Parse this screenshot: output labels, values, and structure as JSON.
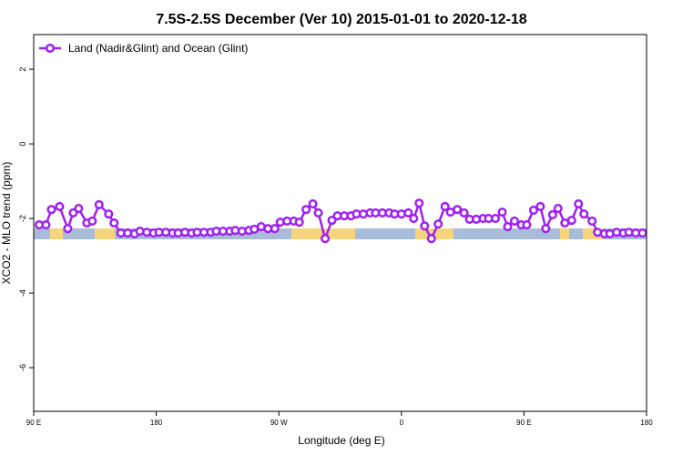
{
  "chart_data": {
    "type": "line",
    "title": "7.5S-2.5S December (Ver 10)   2015-01-01 to 2020-12-18",
    "x_label": "Longitude (deg E)",
    "y_label": "XCO2 - MLO trend (ppm)",
    "xlim": [
      90,
      540
    ],
    "ylim": [
      2.93,
      -7.17
    ],
    "xticks": [
      {
        "value": 90,
        "label": "90 E"
      },
      {
        "value": 180,
        "label": "180"
      },
      {
        "value": 270,
        "label": "90 W"
      },
      {
        "value": 360,
        "label": "0"
      },
      {
        "value": 450,
        "label": "90 E"
      },
      {
        "value": 540,
        "label": "180"
      }
    ],
    "yticks": [
      2,
      0,
      -2,
      -4,
      -6
    ],
    "legend": "top-left",
    "x": [
      94,
      99,
      103,
      109,
      115,
      119,
      123,
      129,
      133,
      138,
      145,
      149,
      154,
      159,
      164,
      168,
      173,
      178,
      182,
      187,
      192,
      196,
      201,
      206,
      210,
      215,
      220,
      224,
      229,
      234,
      238,
      243,
      248,
      252,
      257,
      262,
      267,
      271,
      276,
      281,
      285,
      290,
      295,
      299,
      304,
      309,
      313,
      318,
      323,
      327,
      332,
      337,
      341,
      346,
      351,
      355,
      360,
      365,
      369,
      373,
      377,
      382,
      387,
      392,
      396,
      401,
      406,
      410,
      415,
      420,
      424,
      429,
      434,
      438,
      443,
      448,
      452,
      457,
      462,
      466,
      471,
      475,
      480,
      485,
      490,
      494,
      500,
      504,
      509,
      513,
      518,
      523,
      527,
      532,
      537
    ],
    "series": [
      {
        "name": "Land (Nadir&Glint) and Ocean (Glint)",
        "color": "#a020f0",
        "values": [
          -2.17,
          -2.17,
          -1.76,
          -1.68,
          -2.27,
          -1.85,
          -1.73,
          -2.12,
          -2.07,
          -1.63,
          -1.88,
          -2.12,
          -2.39,
          -2.39,
          -2.41,
          -2.34,
          -2.37,
          -2.39,
          -2.37,
          -2.37,
          -2.39,
          -2.39,
          -2.37,
          -2.39,
          -2.37,
          -2.37,
          -2.37,
          -2.34,
          -2.34,
          -2.34,
          -2.32,
          -2.34,
          -2.32,
          -2.29,
          -2.22,
          -2.27,
          -2.27,
          -2.1,
          -2.07,
          -2.07,
          -2.1,
          -1.76,
          -1.61,
          -1.85,
          -2.54,
          -2.05,
          -1.93,
          -1.93,
          -1.93,
          -1.88,
          -1.88,
          -1.85,
          -1.85,
          -1.85,
          -1.85,
          -1.88,
          -1.88,
          -1.85,
          -2.0,
          -1.59,
          -2.2,
          -2.54,
          -2.15,
          -1.68,
          -1.83,
          -1.76,
          -1.85,
          -2.02,
          -2.02,
          -2.0,
          -2.0,
          -2.0,
          -1.83,
          -2.22,
          -2.07,
          -2.17,
          -2.17,
          -1.78,
          -1.68,
          -2.27,
          -1.9,
          -1.73,
          -2.12,
          -2.05,
          -1.61,
          -1.88,
          -2.07,
          -2.37,
          -2.41,
          -2.41,
          -2.37,
          -2.39,
          -2.37,
          -2.39,
          -2.39
        ]
      }
    ]
  }
}
